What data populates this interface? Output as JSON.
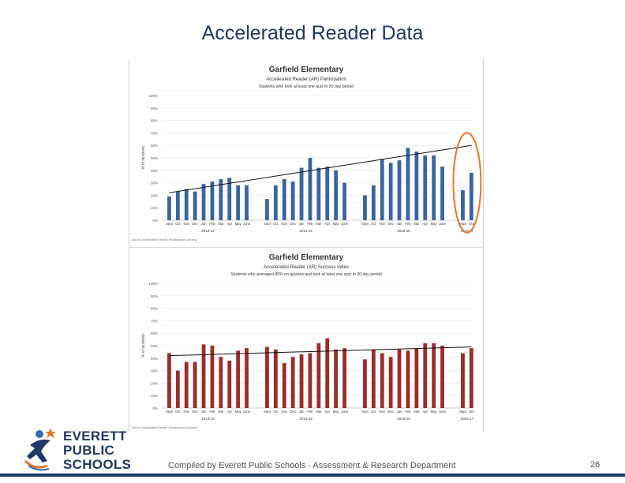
{
  "slide": {
    "title": "Accelerated Reader Data",
    "footer": "Compiled by Everett Public Schools - Assessment & Research Department",
    "page_number": "26"
  },
  "logo": {
    "lines": [
      "EVERETT",
      "PUBLIC",
      "SCHOOLS"
    ],
    "icon": "runner-star-icon",
    "colors": {
      "navy": "#1f3864",
      "orange": "#e8762b",
      "blue": "#2f6fb5"
    }
  },
  "chart_data": [
    {
      "type": "bar",
      "title": "Garfield Elementary",
      "subtitle": "Accelerated Reader (AR) Participation",
      "subtitle2": "Students who took at least one quiz in 30 day period",
      "ylabel": "% of students",
      "ylim": [
        0,
        100
      ],
      "yticks": [
        "0%",
        "10%",
        "20%",
        "30%",
        "40%",
        "50%",
        "60%",
        "70%",
        "80%",
        "90%",
        "100%"
      ],
      "color": "#3a65a0",
      "trendline": {
        "start": 22,
        "end": 60
      },
      "highlight": {
        "year": "2016-17",
        "shape": "ellipse",
        "color": "#e8762b"
      },
      "groups": [
        {
          "label": "2013-14",
          "months": [
            "Sept",
            "Oct",
            "Nov",
            "Dec",
            "Jan",
            "Feb",
            "Mar",
            "Apr",
            "May",
            "June"
          ],
          "values": [
            19,
            23,
            25,
            23,
            29,
            31,
            33,
            34,
            28,
            28
          ]
        },
        {
          "label": "2014-15",
          "months": [
            "Sept",
            "Oct",
            "Nov",
            "Dec",
            "Jan",
            "Feb",
            "Mar",
            "Apr",
            "May",
            "June"
          ],
          "values": [
            17,
            28,
            33,
            31,
            42,
            50,
            42,
            43,
            40,
            30
          ]
        },
        {
          "label": "2015-16",
          "months": [
            "Sept",
            "Oct",
            "Nov",
            "Dec",
            "Jan",
            "Feb",
            "Mar",
            "Apr",
            "May",
            "June"
          ],
          "values": [
            20,
            28,
            49,
            46,
            48,
            58,
            55,
            52,
            52,
            43
          ]
        },
        {
          "label": "2016-17",
          "months": [
            "Sept",
            "Oct"
          ],
          "values": [
            24,
            38
          ]
        }
      ],
      "source_note": "Source: Accelerated Reader, Renaissance Learning"
    },
    {
      "type": "bar",
      "title": "Garfield Elementary",
      "subtitle": "Accelerated Reader (AR) Success Index",
      "subtitle2": "Students who averaged 85% on quizzes and took at least one quiz in 30 day period",
      "ylabel": "% of students",
      "ylim": [
        0,
        100
      ],
      "yticks": [
        "0%",
        "10%",
        "20%",
        "30%",
        "40%",
        "50%",
        "60%",
        "70%",
        "80%",
        "90%",
        "100%"
      ],
      "color": "#9b2d2a",
      "trendline": {
        "start": 42,
        "end": 49
      },
      "groups": [
        {
          "label": "2013-14",
          "months": [
            "Sept",
            "Oct",
            "Nov",
            "Dec",
            "Jan",
            "Feb",
            "Mar",
            "Apr",
            "May",
            "June"
          ],
          "values": [
            44,
            30,
            37,
            37,
            51,
            50,
            41,
            38,
            46,
            48
          ]
        },
        {
          "label": "2014-15",
          "months": [
            "Sept",
            "Oct",
            "Nov",
            "Dec",
            "Jan",
            "Feb",
            "Mar",
            "Apr",
            "May",
            "June"
          ],
          "values": [
            49,
            47,
            36,
            41,
            43,
            44,
            52,
            56,
            47,
            48
          ]
        },
        {
          "label": "2015-16",
          "months": [
            "Sept",
            "Oct",
            "Nov",
            "Dec",
            "Jan",
            "Feb",
            "Mar",
            "Apr",
            "May",
            "June"
          ],
          "values": [
            39,
            47,
            44,
            41,
            47,
            46,
            48,
            52,
            52,
            50
          ]
        },
        {
          "label": "2016-17",
          "months": [
            "Sept",
            "Oct"
          ],
          "values": [
            44,
            48
          ]
        }
      ],
      "source_note": "Source: Accelerated Reader, Renaissance Learning"
    }
  ]
}
